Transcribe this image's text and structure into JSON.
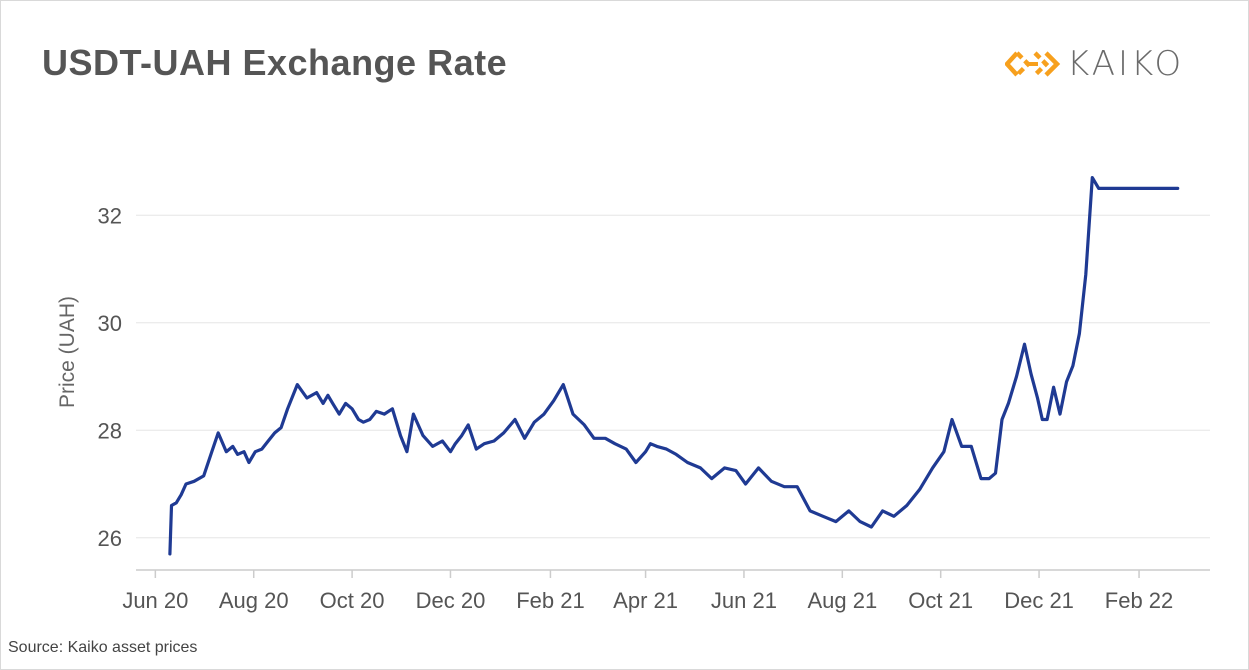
{
  "header": {
    "title": "USDT-UAH Exchange Rate"
  },
  "logo": {
    "text": "KAIKO",
    "accent_color": "#f7a01d",
    "icon": "kaiko-diamond-icon"
  },
  "footer": {
    "source": "Source: Kaiko asset prices"
  },
  "colors": {
    "line": "#1f3a93",
    "grid": "#e6e6e6",
    "axis": "#cccccc"
  },
  "chart_data": {
    "type": "line",
    "title": "USDT-UAH Exchange Rate",
    "xlabel": "",
    "ylabel": "Price (UAH)",
    "x_ticks": [
      "Jun 20",
      "Aug 20",
      "Oct 20",
      "Dec 20",
      "Feb 21",
      "Apr 21",
      "Jun 21",
      "Aug 21",
      "Oct 21",
      "Dec 21",
      "Feb 22"
    ],
    "y_ticks": [
      26,
      28,
      30,
      32
    ],
    "ylim": [
      25.4,
      33.4
    ],
    "xlim": [
      "2020-05-20",
      "2022-03-17"
    ],
    "grid": true,
    "legend": "none",
    "series": [
      {
        "x": [
          "2020-06-10",
          "2020-06-11",
          "2020-06-14",
          "2020-06-17",
          "2020-06-20",
          "2020-06-25",
          "2020-07-01",
          "2020-07-06",
          "2020-07-10",
          "2020-07-15",
          "2020-07-19",
          "2020-07-22",
          "2020-07-26",
          "2020-07-29",
          "2020-08-02",
          "2020-08-06",
          "2020-08-10",
          "2020-08-14",
          "2020-08-18",
          "2020-08-22",
          "2020-08-28",
          "2020-09-03",
          "2020-09-09",
          "2020-09-13",
          "2020-09-16",
          "2020-09-19",
          "2020-09-23",
          "2020-09-27",
          "2020-10-01",
          "2020-10-05",
          "2020-10-08",
          "2020-10-12",
          "2020-10-16",
          "2020-10-21",
          "2020-10-26",
          "2020-10-31",
          "2020-11-04",
          "2020-11-08",
          "2020-11-14",
          "2020-11-20",
          "2020-11-26",
          "2020-12-01",
          "2020-12-04",
          "2020-12-08",
          "2020-12-12",
          "2020-12-17",
          "2020-12-22",
          "2020-12-28",
          "2021-01-03",
          "2021-01-10",
          "2021-01-16",
          "2021-01-22",
          "2021-01-28",
          "2021-02-03",
          "2021-02-09",
          "2021-02-15",
          "2021-02-22",
          "2021-02-28",
          "2021-03-07",
          "2021-03-13",
          "2021-03-20",
          "2021-03-26",
          "2021-04-01",
          "2021-04-04",
          "2021-04-08",
          "2021-04-14",
          "2021-04-20",
          "2021-04-27",
          "2021-05-05",
          "2021-05-12",
          "2021-05-20",
          "2021-05-27",
          "2021-06-02",
          "2021-06-10",
          "2021-06-18",
          "2021-06-26",
          "2021-07-04",
          "2021-07-12",
          "2021-07-20",
          "2021-07-28",
          "2021-08-05",
          "2021-08-12",
          "2021-08-19",
          "2021-08-26",
          "2021-09-02",
          "2021-09-10",
          "2021-09-18",
          "2021-09-26",
          "2021-10-03",
          "2021-10-08",
          "2021-10-14",
          "2021-10-20",
          "2021-10-26",
          "2021-10-31",
          "2021-11-04",
          "2021-11-08",
          "2021-11-12",
          "2021-11-17",
          "2021-11-22",
          "2021-11-26",
          "2021-11-30",
          "2021-12-03",
          "2021-12-06",
          "2021-12-10",
          "2021-12-14",
          "2021-12-18",
          "2021-12-22",
          "2021-12-26",
          "2021-12-30",
          "2022-01-03",
          "2022-01-07",
          "2022-01-11",
          "2022-01-14",
          "2022-01-17",
          "2022-01-20",
          "2022-01-24",
          "2022-01-28",
          "2022-02-01",
          "2022-02-05",
          "2022-02-08",
          "2022-02-10",
          "2022-02-12",
          "2022-02-14",
          "2022-02-16",
          "2022-02-17",
          "2022-02-18",
          "2022-02-19",
          "2022-02-20",
          "2022-02-21",
          "2022-02-22",
          "2022-02-23",
          "2022-02-24",
          "2022-02-25"
        ],
        "values": [
          25.7,
          26.6,
          26.65,
          26.8,
          27.0,
          27.05,
          27.15,
          27.6,
          27.95,
          27.6,
          27.7,
          27.55,
          27.6,
          27.4,
          27.6,
          27.65,
          27.8,
          27.95,
          28.05,
          28.4,
          28.85,
          28.6,
          28.7,
          28.5,
          28.65,
          28.5,
          28.3,
          28.5,
          28.4,
          28.2,
          28.15,
          28.2,
          28.35,
          28.3,
          28.4,
          27.9,
          27.6,
          28.3,
          27.9,
          27.7,
          27.8,
          27.6,
          27.75,
          27.9,
          28.1,
          27.65,
          27.75,
          27.8,
          27.95,
          28.2,
          27.85,
          28.15,
          28.3,
          28.55,
          28.85,
          28.3,
          28.1,
          27.85,
          27.85,
          27.75,
          27.65,
          27.4,
          27.6,
          27.75,
          27.7,
          27.65,
          27.55,
          27.4,
          27.3,
          27.1,
          27.3,
          27.25,
          27.0,
          27.3,
          27.05,
          26.95,
          26.95,
          26.5,
          26.4,
          26.3,
          26.5,
          26.3,
          26.2,
          26.5,
          26.4,
          26.6,
          26.9,
          27.3,
          27.6,
          28.2,
          27.7,
          27.7,
          27.1,
          27.1,
          27.2,
          28.2,
          28.5,
          29.0,
          29.6,
          29.05,
          28.6,
          28.2,
          28.2,
          28.8,
          28.3,
          28.9,
          29.2,
          29.8,
          30.9,
          32.7,
          32.5,
          32.5,
          32.5,
          32.5,
          32.5,
          32.5,
          32.5,
          32.5,
          32.5,
          32.5,
          32.5,
          32.5,
          32.5,
          32.5,
          32.5,
          32.5,
          32.5,
          32.5,
          32.5,
          32.5,
          32.5,
          32.5,
          32.5
        ]
      }
    ]
  }
}
